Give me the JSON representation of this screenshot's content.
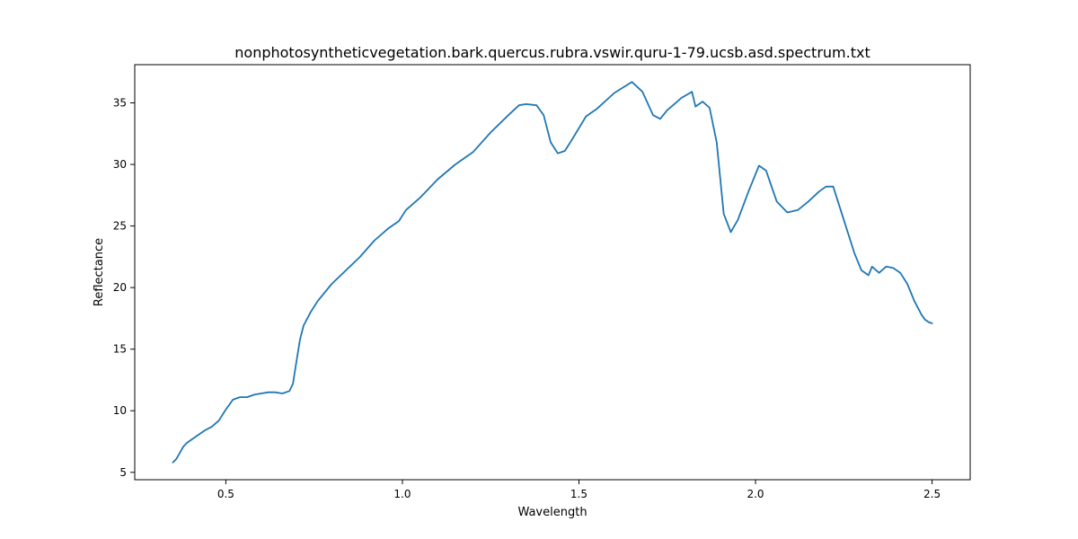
{
  "chart_data": {
    "type": "line",
    "title": "nonphotosyntheticvegetation.bark.quercus.rubra.vswir.quru-1-79.ucsb.asd.spectrum.txt",
    "xlabel": "Wavelength",
    "ylabel": "Reflectance",
    "xlim": [
      0.242,
      2.608
    ],
    "ylim": [
      4.4,
      38.1
    ],
    "xticks": [
      0.5,
      1.0,
      1.5,
      2.0,
      2.5
    ],
    "xtick_labels": [
      "0.5",
      "1.0",
      "1.5",
      "2.0",
      "2.5"
    ],
    "yticks": [
      5,
      10,
      15,
      20,
      25,
      30,
      35
    ],
    "ytick_labels": [
      "5",
      "10",
      "15",
      "20",
      "25",
      "30",
      "35"
    ],
    "grid": false,
    "legend": null,
    "line_color": "#1f77b4",
    "series": [
      {
        "x": [
          0.35,
          0.36,
          0.37,
          0.38,
          0.39,
          0.4,
          0.42,
          0.44,
          0.46,
          0.48,
          0.5,
          0.52,
          0.54,
          0.56,
          0.58,
          0.6,
          0.62,
          0.64,
          0.66,
          0.68,
          0.69,
          0.7,
          0.71,
          0.72,
          0.74,
          0.76,
          0.8,
          0.84,
          0.88,
          0.92,
          0.96,
          0.99,
          1.01,
          1.05,
          1.1,
          1.15,
          1.2,
          1.25,
          1.3,
          1.33,
          1.35,
          1.38,
          1.4,
          1.42,
          1.44,
          1.46,
          1.48,
          1.52,
          1.55,
          1.6,
          1.65,
          1.68,
          1.71,
          1.73,
          1.75,
          1.77,
          1.79,
          1.82,
          1.83,
          1.85,
          1.87,
          1.89,
          1.91,
          1.93,
          1.95,
          1.98,
          2.01,
          2.03,
          2.06,
          2.09,
          2.12,
          2.15,
          2.18,
          2.2,
          2.22,
          2.25,
          2.28,
          2.3,
          2.32,
          2.33,
          2.35,
          2.37,
          2.39,
          2.41,
          2.43,
          2.45,
          2.47,
          2.48,
          2.49,
          2.5
        ],
        "values": [
          5.8,
          6.1,
          6.6,
          7.1,
          7.4,
          7.6,
          8.0,
          8.4,
          8.7,
          9.2,
          10.1,
          10.9,
          11.1,
          11.1,
          11.3,
          11.4,
          11.5,
          11.5,
          11.4,
          11.6,
          12.2,
          14.0,
          15.8,
          16.9,
          18.0,
          18.9,
          20.3,
          21.4,
          22.5,
          23.8,
          24.8,
          25.4,
          26.3,
          27.3,
          28.8,
          30.0,
          31.0,
          32.6,
          34.0,
          34.8,
          34.9,
          34.8,
          34.0,
          31.8,
          30.9,
          31.1,
          32.0,
          33.9,
          34.5,
          35.8,
          36.7,
          35.9,
          34.0,
          33.7,
          34.4,
          34.9,
          35.4,
          35.9,
          34.7,
          35.1,
          34.6,
          31.8,
          26.0,
          24.5,
          25.5,
          27.8,
          29.9,
          29.5,
          27.0,
          26.1,
          26.3,
          27.0,
          27.8,
          28.2,
          28.2,
          25.5,
          22.8,
          21.4,
          21.0,
          21.7,
          21.2,
          21.7,
          21.6,
          21.2,
          20.3,
          18.9,
          17.8,
          17.4,
          17.2,
          17.1
        ]
      }
    ]
  }
}
